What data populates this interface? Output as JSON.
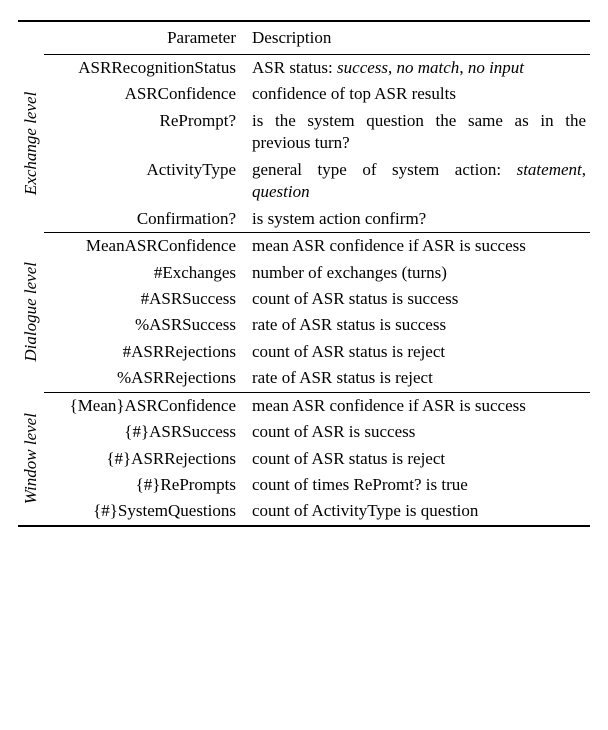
{
  "header": {
    "param": "Parameter",
    "desc": "Description"
  },
  "groups": [
    {
      "label": "Exchange level",
      "rows": [
        {
          "param": "ASRRecognitionStatus",
          "desc": "ASR status: <em>success</em>, <em>no match</em>, <em>no input</em>"
        },
        {
          "param": "ASRConfidence",
          "desc": "confidence of top ASR results"
        },
        {
          "param": "RePrompt?",
          "desc": "is the system question the same as in the previous turn?"
        },
        {
          "param": "ActivityType",
          "desc": "general type of system action: <em>statement</em>, <em>question</em>"
        },
        {
          "param": "Confirmation?",
          "desc": "is system action confirm?"
        }
      ]
    },
    {
      "label": "Dialogue level",
      "rows": [
        {
          "param": "MeanASRConfidence",
          "desc": "mean ASR confidence if ASR is success"
        },
        {
          "param": "#Exchanges",
          "desc": "number of exchanges (turns)"
        },
        {
          "param": "#ASRSuccess",
          "desc": "count of ASR status is success"
        },
        {
          "param": "%ASRSuccess",
          "desc": "rate of ASR status is success"
        },
        {
          "param": "#ASRRejections",
          "desc": "count of ASR status is reject"
        },
        {
          "param": "%ASRRejections",
          "desc": "rate of ASR status is reject"
        }
      ]
    },
    {
      "label": "Window level",
      "rows": [
        {
          "param": "{Mean}ASRConfidence",
          "desc": "mean ASR confidence if ASR is success"
        },
        {
          "param": "{#}ASRSuccess",
          "desc": "count of ASR is success"
        },
        {
          "param": "{#}ASRRejections",
          "desc": "count of ASR status is reject"
        },
        {
          "param": "{#}RePrompts",
          "desc": "count of times RePromt? is true"
        },
        {
          "param": "{#}SystemQuestions",
          "desc": "count of ActivityType is question"
        }
      ]
    }
  ]
}
